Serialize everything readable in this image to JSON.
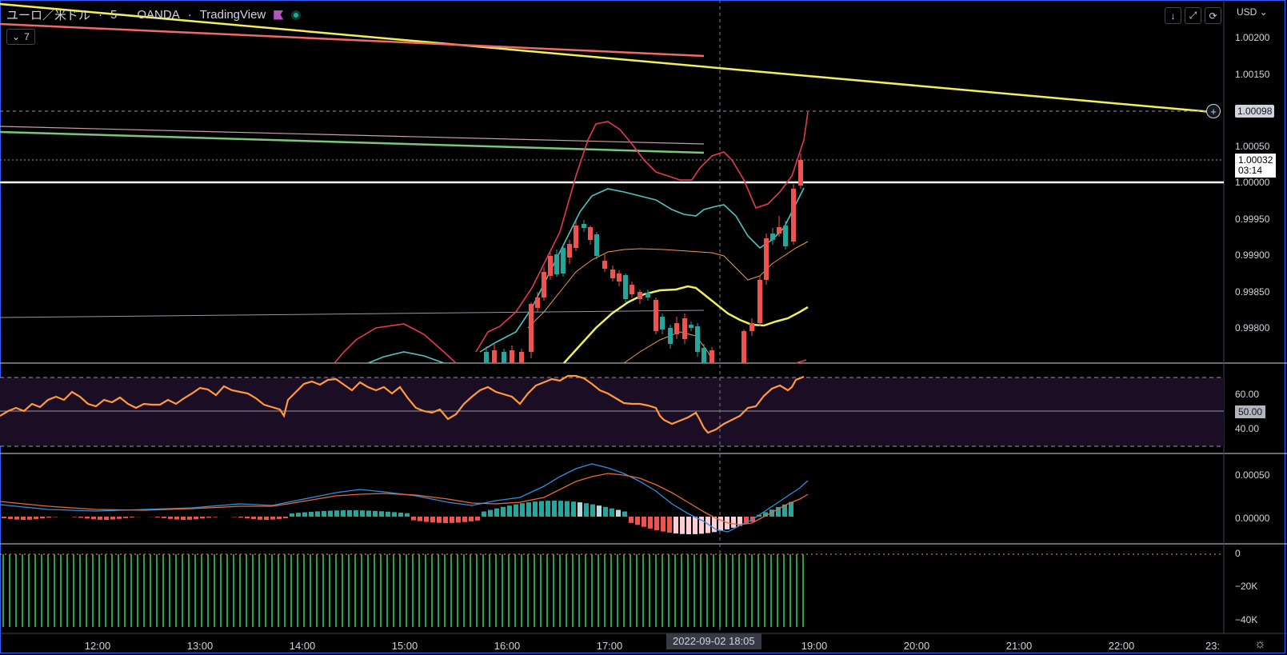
{
  "header": {
    "symbol": "ユーロ／米ドル",
    "sep": "·",
    "interval": "5",
    "exchange": "OANDA",
    "source": "TradingView",
    "collapse_count": "7"
  },
  "price_axis": {
    "currency": "USD",
    "labels": [
      "1.00200",
      "1.00150",
      "1.00050",
      "1.00000",
      "0.99950",
      "0.99900",
      "0.99850",
      "0.99800"
    ],
    "alert_price": "1.00098",
    "last_price": "1.00032",
    "countdown": "03:14"
  },
  "rsi_axis": {
    "labels": [
      "60.00",
      "40.00"
    ],
    "mid": "50.00"
  },
  "macd_axis": {
    "labels": [
      "0.00050",
      "0.00000"
    ]
  },
  "vol_axis": {
    "labels": [
      "0",
      "−20K",
      "−40K"
    ]
  },
  "time_axis": {
    "labels": [
      "12:00",
      "13:00",
      "14:00",
      "15:00",
      "16:00",
      "17:00",
      "19:00",
      "20:00",
      "21:00",
      "22:00",
      "23:"
    ],
    "crosshair": "2022-09-02   18:05"
  },
  "colors": {
    "up": "#26a69a",
    "down": "#ef5350",
    "rsi": "#ff9a3c",
    "bb": "#e53950",
    "kc": "#4fc3c3",
    "yellow": "#f0f05a"
  },
  "icons": [
    "chevron-down-icon",
    "arrow-down-icon",
    "fullscreen-icon",
    "refresh-icon",
    "plus-icon",
    "gear-icon",
    "flag-icon",
    "status-dot-icon"
  ]
}
